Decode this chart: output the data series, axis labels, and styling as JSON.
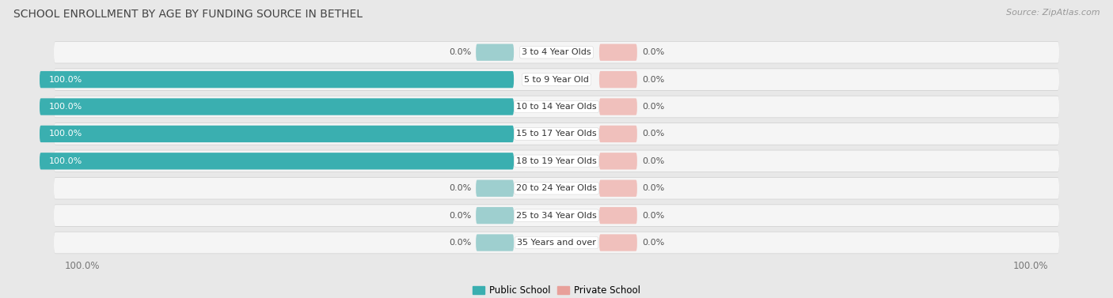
{
  "title": "SCHOOL ENROLLMENT BY AGE BY FUNDING SOURCE IN BETHEL",
  "source": "Source: ZipAtlas.com",
  "categories": [
    "3 to 4 Year Olds",
    "5 to 9 Year Old",
    "10 to 14 Year Olds",
    "15 to 17 Year Olds",
    "18 to 19 Year Olds",
    "20 to 24 Year Olds",
    "25 to 34 Year Olds",
    "35 Years and over"
  ],
  "public_values": [
    0.0,
    100.0,
    100.0,
    100.0,
    100.0,
    0.0,
    0.0,
    0.0
  ],
  "private_values": [
    0.0,
    0.0,
    0.0,
    0.0,
    0.0,
    0.0,
    0.0,
    0.0
  ],
  "public_color": "#3AAFB0",
  "private_color": "#E8A09A",
  "public_color_light": "#9ECFCF",
  "private_color_light": "#F0C0BC",
  "row_bg_color": "#EFEFEF",
  "row_inner_color": "#F8F8F8",
  "bg_color": "#E8E8E8",
  "title_fontsize": 10,
  "source_fontsize": 8,
  "tick_fontsize": 8.5,
  "label_fontsize": 8,
  "category_fontsize": 8,
  "min_bar_size": 8.0,
  "private_fixed_size": 8.0
}
